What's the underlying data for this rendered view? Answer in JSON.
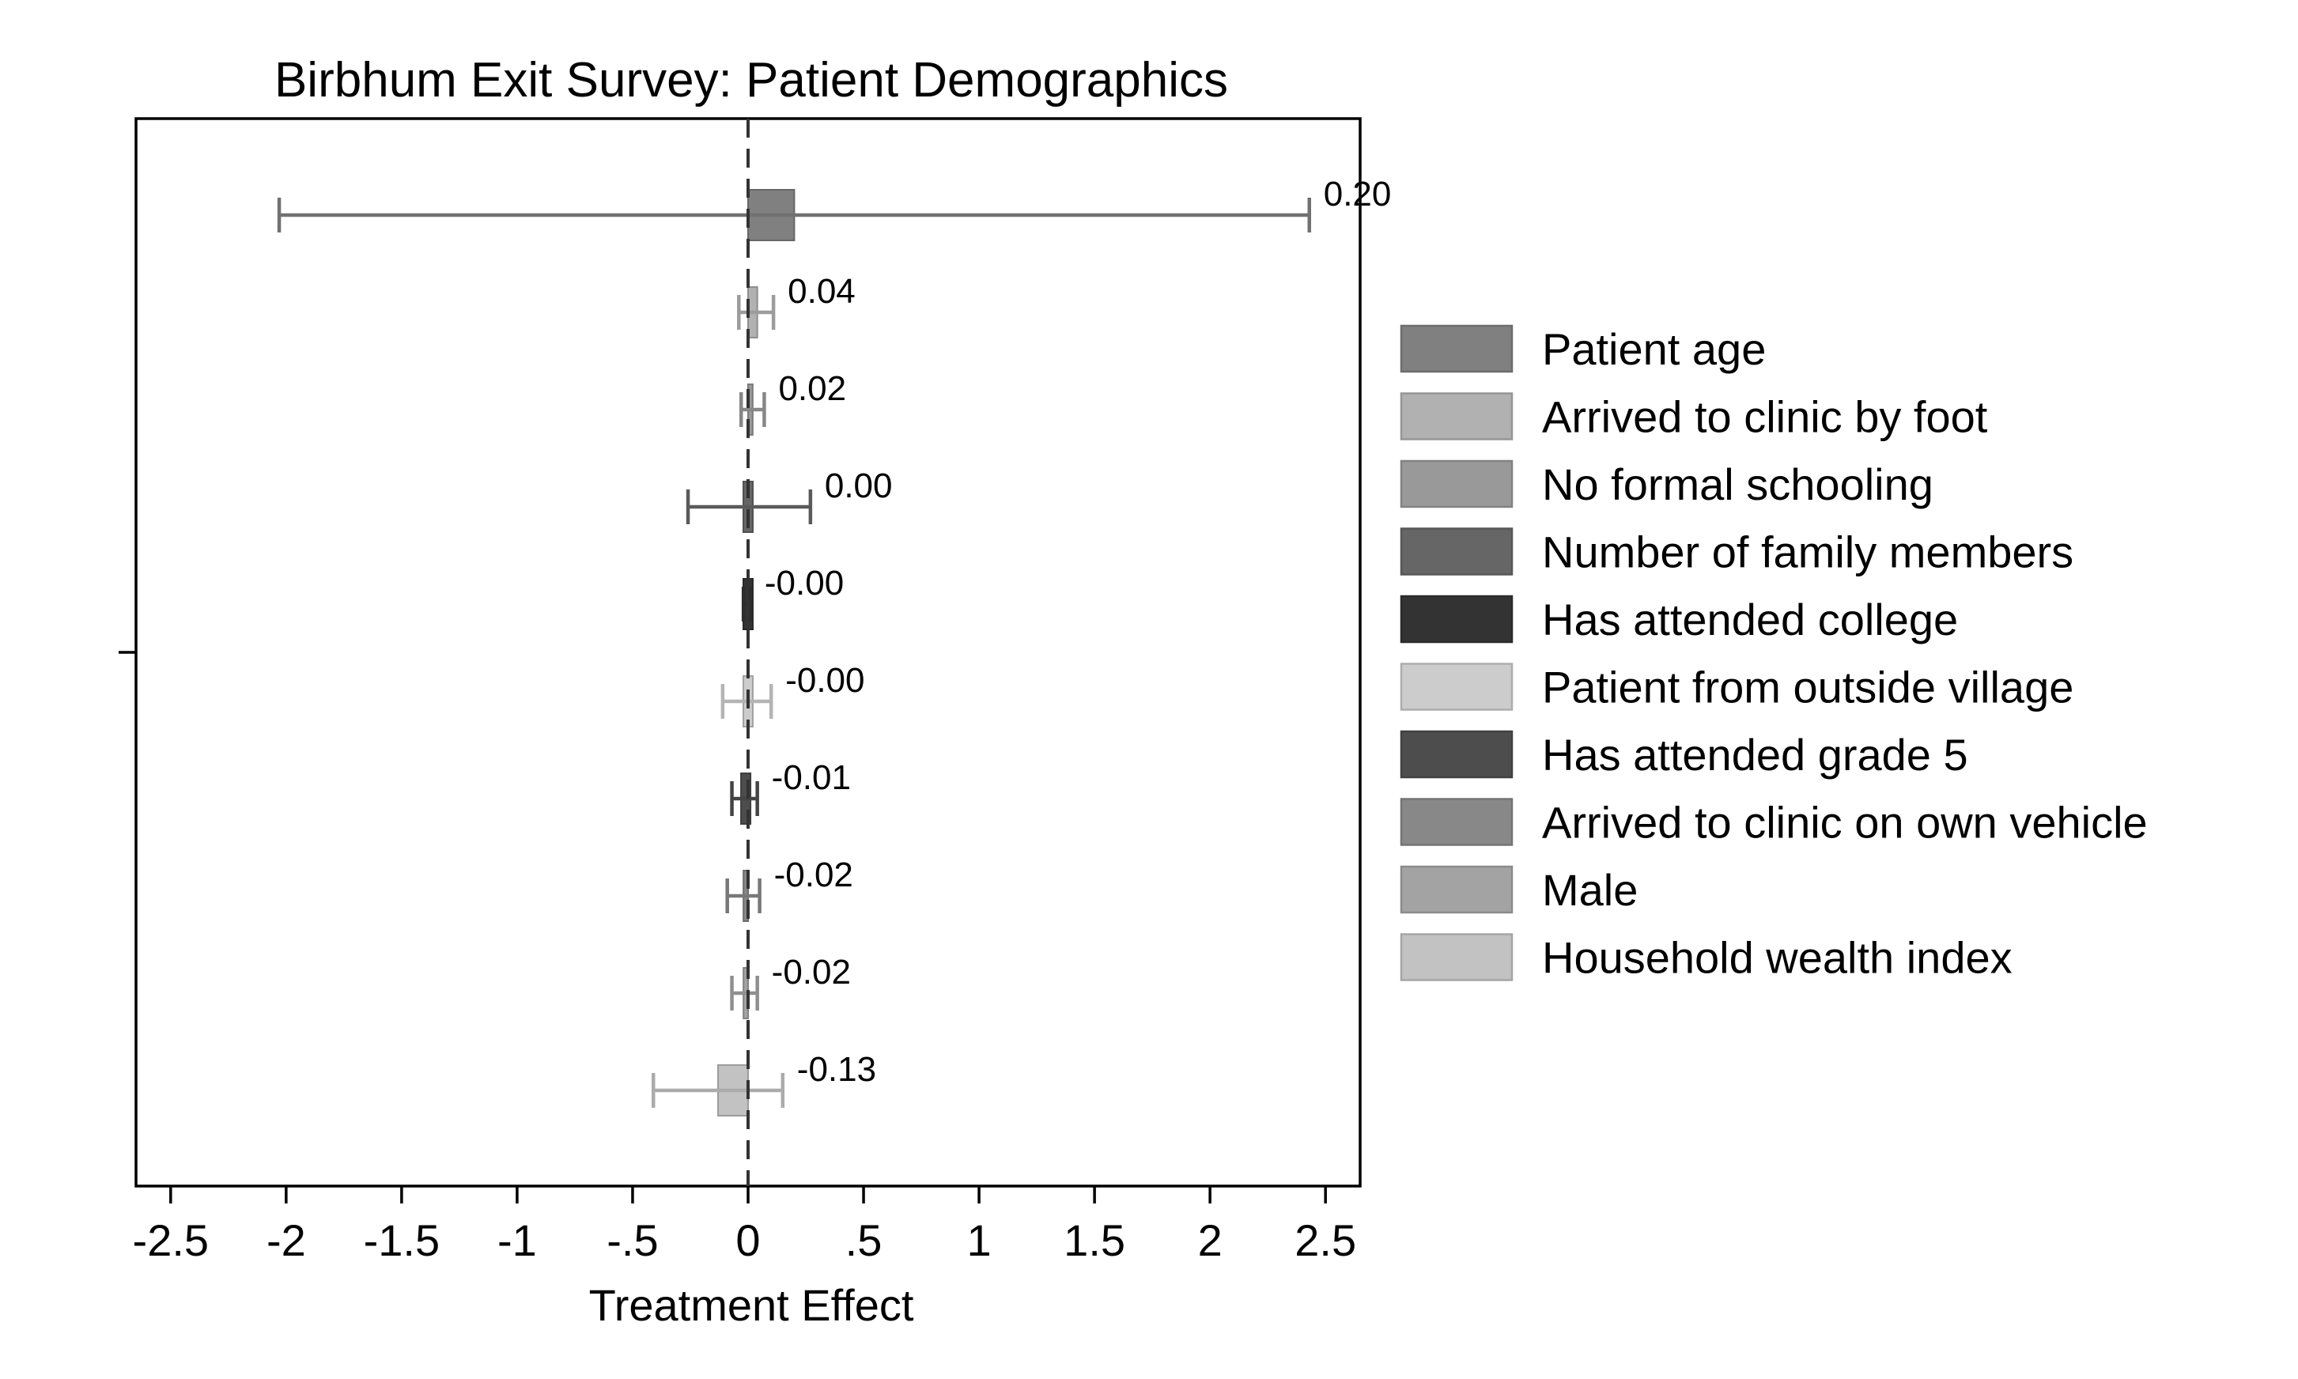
{
  "chart_data": {
    "type": "bar",
    "orientation": "horizontal",
    "title": "Birbhum Exit Survey: Patient Demographics",
    "xlabel": "Treatment Effect",
    "ylabel": "",
    "xlim": [
      -2.65,
      2.65
    ],
    "x_ticks": [
      -2.5,
      -2,
      -1.5,
      -1,
      -0.5,
      0,
      0.5,
      1,
      1.5,
      2,
      2.5
    ],
    "x_tick_labels": [
      "-2.5",
      "-2",
      "-1.5",
      "-1",
      "-.5",
      "0",
      ".5",
      "1",
      "1.5",
      "2",
      "2.5"
    ],
    "reference_line": 0,
    "grid": false,
    "legend_position": "right",
    "series": [
      {
        "name": "Patient age",
        "value": 0.2,
        "label": "0.20",
        "ci": [
          -2.03,
          2.43
        ],
        "color": "#808080"
      },
      {
        "name": "Arrived to clinic by foot",
        "value": 0.04,
        "label": "0.04",
        "ci": [
          -0.04,
          0.11
        ],
        "color": "#b1b1b1"
      },
      {
        "name": "No formal schooling",
        "value": 0.02,
        "label": "0.02",
        "ci": [
          -0.03,
          0.07
        ],
        "color": "#999999"
      },
      {
        "name": "Number of family members",
        "value": 0.0,
        "label": "0.00",
        "ci": [
          -0.26,
          0.27
        ],
        "color": "#666666"
      },
      {
        "name": "Has attended college",
        "value": -0.0,
        "label": "-0.00",
        "ci": [
          -0.02,
          0.01
        ],
        "color": "#333333"
      },
      {
        "name": "Patient from outside village",
        "value": -0.0,
        "label": "-0.00",
        "ci": [
          -0.11,
          0.1
        ],
        "color": "#cccccc"
      },
      {
        "name": "Has attended grade 5",
        "value": -0.01,
        "label": "-0.01",
        "ci": [
          -0.07,
          0.04
        ],
        "color": "#4d4d4d"
      },
      {
        "name": "Arrived to clinic on own vehicle",
        "value": -0.02,
        "label": "-0.02",
        "ci": [
          -0.09,
          0.05
        ],
        "color": "#888888"
      },
      {
        "name": "Male",
        "value": -0.02,
        "label": "-0.02",
        "ci": [
          -0.07,
          0.04
        ],
        "color": "#a3a3a3"
      },
      {
        "name": "Household wealth index",
        "value": -0.13,
        "label": "-0.13",
        "ci": [
          -0.41,
          0.15
        ],
        "color": "#c2c2c2"
      }
    ]
  }
}
